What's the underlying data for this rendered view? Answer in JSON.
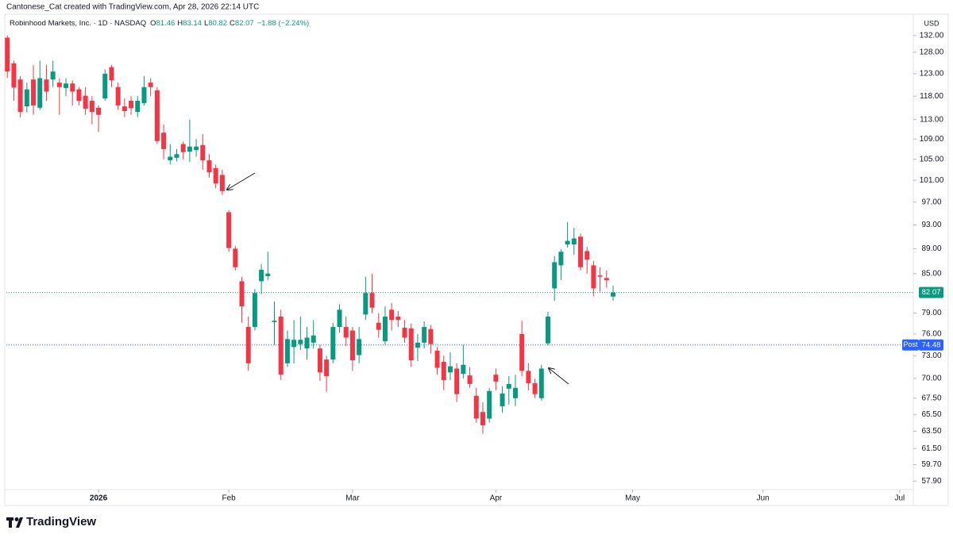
{
  "attribution": "Cantonese_Cat created with TradingView.com, Apr 28, 2026 22:14 UTC",
  "brand": "TradingView",
  "chart_data": {
    "type": "candlestick",
    "title": "Robinhood Markets, Inc. · 1D · NASDAQ",
    "legend_letters": [
      "O",
      "H",
      "L",
      "C"
    ],
    "change_label": "−1.88 (−2.24%)",
    "currency": "USD",
    "log_scale": true,
    "up_color": "#089981",
    "down_color": "#f23645",
    "categories": [
      null,
      null,
      null,
      null,
      null,
      null,
      null,
      null,
      null,
      null,
      null,
      null,
      null,
      null,
      null,
      null,
      null,
      null,
      null,
      null,
      null,
      null,
      null,
      null,
      null,
      null,
      null,
      null,
      null,
      null,
      null,
      null,
      null,
      null,
      null,
      null,
      null,
      null,
      null,
      null,
      null,
      null,
      null,
      null,
      null,
      null,
      null,
      null,
      null,
      null,
      null,
      null,
      null,
      null,
      null,
      null,
      null,
      null,
      null,
      null,
      null,
      null,
      null,
      null,
      null,
      null,
      null,
      null,
      null,
      null,
      null,
      null,
      null,
      null,
      null,
      null,
      null,
      null,
      null,
      null,
      null,
      null,
      null,
      null,
      null,
      null,
      null,
      null,
      null,
      null,
      null,
      null,
      null,
      null
    ],
    "open": [
      131.5,
      125.4,
      121.7,
      115.8,
      121.7,
      115.5,
      121.7,
      121.7,
      121,
      119.8,
      120.8,
      119.5,
      118.1,
      117,
      115.5,
      117.5,
      124.5,
      120,
      115.8,
      117,
      114.6,
      116.5,
      121,
      119.3,
      110.3,
      104.8,
      105.3,
      108,
      106.5,
      106.8,
      107.8,
      104.8,
      103.3,
      102,
      95.2,
      89,
      83.8,
      77,
      77,
      83.8,
      84.6,
      77.7,
      78.5,
      72,
      74.2,
      74.6,
      74,
      74.8,
      74,
      72.5,
      72.5,
      77,
      77,
      76.5,
      73.1,
      78.8,
      82,
      77.6,
      75,
      79.5,
      78.5,
      76.9,
      76.8,
      74.1,
      74.8,
      76.7,
      73.7,
      72.2,
      70.8,
      71.3,
      70.6,
      70.4,
      67.8,
      65.8,
      65,
      70.5,
      66.5,
      68.7,
      67.5,
      76,
      71,
      69.4,
      67.5,
      74.7,
      82.7,
      86.3,
      89.7,
      89.7,
      91,
      88.6,
      86.3,
      84.7,
      84.3,
      81.46
    ],
    "high": [
      132,
      126,
      122.5,
      121,
      125,
      126,
      125,
      126,
      122,
      122,
      121.5,
      120,
      120,
      118,
      116,
      124,
      125,
      121,
      117.5,
      118,
      118,
      122.5,
      122,
      120,
      112,
      108,
      107,
      108.5,
      113,
      109,
      110,
      106,
      104,
      103,
      95.6,
      89.5,
      84.5,
      78.5,
      82.6,
      86.5,
      88.5,
      80.7,
      79.5,
      76.5,
      78,
      78.5,
      77,
      78,
      74.5,
      73,
      77.6,
      80.3,
      78.5,
      77,
      77,
      84.5,
      85,
      79,
      80,
      80.5,
      79.3,
      78,
      77.5,
      76,
      77.8,
      77.3,
      74.2,
      73,
      73.5,
      72,
      74.5,
      71.5,
      68.8,
      67,
      68.8,
      71.3,
      69,
      70.3,
      70.5,
      77.9,
      72,
      70,
      71.8,
      79.2,
      87.8,
      88.9,
      93.5,
      92.5,
      91.5,
      89.3,
      87,
      86,
      85.5,
      83.14
    ],
    "low": [
      122,
      117,
      113.5,
      114.5,
      114,
      115,
      117,
      120,
      114,
      118,
      116,
      116,
      114,
      112,
      110.5,
      117,
      120,
      115,
      113.5,
      114,
      113.5,
      116,
      118,
      108,
      105,
      104,
      104.6,
      105,
      104.5,
      105.5,
      103,
      101.5,
      99.5,
      98.3,
      88.5,
      85.5,
      77.6,
      71,
      76.5,
      81.8,
      84,
      74.5,
      69.8,
      71.5,
      72,
      73.8,
      72.5,
      74,
      69.7,
      68.3,
      72,
      76.2,
      74.3,
      71,
      72,
      78,
      79,
      75.5,
      74.5,
      76.5,
      77,
      74.8,
      71.5,
      72.3,
      74,
      73.3,
      70.5,
      68.5,
      69.8,
      67,
      70,
      68.8,
      64.5,
      63.2,
      64.5,
      68.5,
      65.7,
      66.7,
      66.5,
      70.3,
      68.5,
      67.5,
      67.2,
      74.4,
      80.8,
      84,
      89.2,
      88,
      85.5,
      85,
      81.5,
      82.2,
      82.8,
      80.82
    ],
    "close": [
      123.5,
      119.9,
      114.6,
      119.5,
      116,
      122,
      119,
      123.5,
      120,
      120.8,
      119,
      117,
      115.3,
      114.6,
      114,
      123,
      121.5,
      116,
      114.8,
      115.4,
      117,
      120,
      120,
      108.6,
      107,
      105.5,
      106,
      106.4,
      107.5,
      107.5,
      104.8,
      102.5,
      100.4,
      99,
      89.1,
      86,
      80,
      72,
      82,
      85.6,
      85,
      77.9,
      70.5,
      75.3,
      75.2,
      75.2,
      75.5,
      75.8,
      70.8,
      70.3,
      77,
      79.5,
      75.5,
      72.4,
      75.3,
      82,
      79.8,
      76.6,
      78.5,
      78,
      78,
      75.5,
      72.4,
      74.8,
      77,
      74.6,
      71.4,
      69.8,
      71.6,
      68,
      71.8,
      69.3,
      65,
      64.2,
      68.4,
      69.6,
      68.1,
      69.3,
      68.8,
      71,
      69.4,
      68,
      71.3,
      78.5,
      86.8,
      88.5,
      90.3,
      90.7,
      86,
      87.2,
      82.7,
      84.5,
      83.95,
      82.07
    ],
    "last_price": {
      "value": 82.07,
      "color": "#089981"
    },
    "post_market": {
      "label": "Post",
      "value": 74.48,
      "color": "#2962ff"
    },
    "xlim": [
      -0.15,
      138.6
    ],
    "xticks": [
      {
        "value": 14,
        "label": "2026"
      },
      {
        "value": 34,
        "label": "Feb"
      },
      {
        "value": 53,
        "label": "Mar"
      },
      {
        "value": 75,
        "label": "Apr"
      },
      {
        "value": 96,
        "label": "May"
      },
      {
        "value": 116,
        "label": "Jun"
      },
      {
        "value": 137,
        "label": "Jul"
      }
    ],
    "ylim": [
      57.0,
      137.3
    ],
    "yticks": [
      {
        "value": 132,
        "label": "132.00"
      },
      {
        "value": 128,
        "label": "128.00"
      },
      {
        "value": 123,
        "label": "123.00"
      },
      {
        "value": 118,
        "label": "118.00"
      },
      {
        "value": 113,
        "label": "113.00"
      },
      {
        "value": 109,
        "label": "109.00"
      },
      {
        "value": 105,
        "label": "105.00"
      },
      {
        "value": 101,
        "label": "101.00"
      },
      {
        "value": 97,
        "label": "97.00"
      },
      {
        "value": 93,
        "label": "93.00"
      },
      {
        "value": 89,
        "label": "89.00"
      },
      {
        "value": 85,
        "label": "85.00"
      },
      {
        "value": 79,
        "label": "79.00"
      },
      {
        "value": 76,
        "label": "76.00"
      },
      {
        "value": 73,
        "label": "73.00"
      },
      {
        "value": 70,
        "label": "70.00"
      },
      {
        "value": 67.5,
        "label": "67.50"
      },
      {
        "value": 65.5,
        "label": "65.50"
      },
      {
        "value": 63.5,
        "label": "63.50"
      },
      {
        "value": 61.5,
        "label": "61.50"
      },
      {
        "value": 59.7,
        "label": "59.70"
      },
      {
        "value": 57.9,
        "label": "57.90"
      }
    ]
  }
}
